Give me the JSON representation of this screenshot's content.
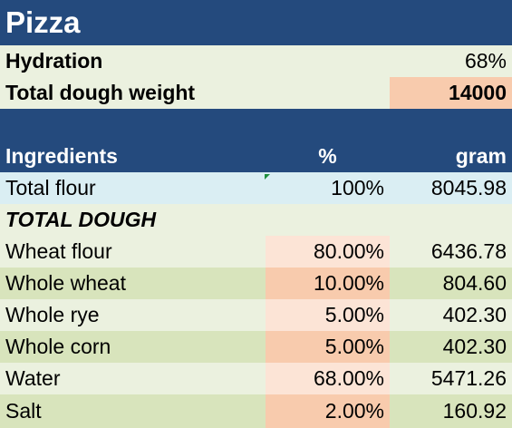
{
  "sheet": {
    "title": "Pizza",
    "hydration": {
      "label": "Hydration",
      "value": "68%"
    },
    "total_dough_weight": {
      "label": "Total dough weight",
      "value": "14000"
    },
    "table": {
      "headers": {
        "ingredients": "Ingredients",
        "percent": "%",
        "gram": "gram"
      },
      "total_flour": {
        "name": "Total flour",
        "percent": "100%",
        "gram": "8045.98"
      },
      "section_label": "TOTAL DOUGH",
      "rows": [
        {
          "name": "Wheat flour",
          "percent": "80.00%",
          "gram": "6436.78"
        },
        {
          "name": "Whole wheat",
          "percent": "10.00%",
          "gram": "804.60"
        },
        {
          "name": "Whole rye",
          "percent": "5.00%",
          "gram": "402.30"
        },
        {
          "name": "Whole corn",
          "percent": "5.00%",
          "gram": "402.30"
        },
        {
          "name": "Water",
          "percent": "68.00%",
          "gram": "5471.26"
        },
        {
          "name": "Salt",
          "percent": "2.00%",
          "gram": "160.92"
        }
      ]
    },
    "colors": {
      "header_blue": "#244a7d",
      "light_green": "#ebf1df",
      "dark_green": "#d8e4bc",
      "light_blue": "#daeef3",
      "light_peach": "#fce4d6",
      "peach": "#f8cbad"
    }
  }
}
